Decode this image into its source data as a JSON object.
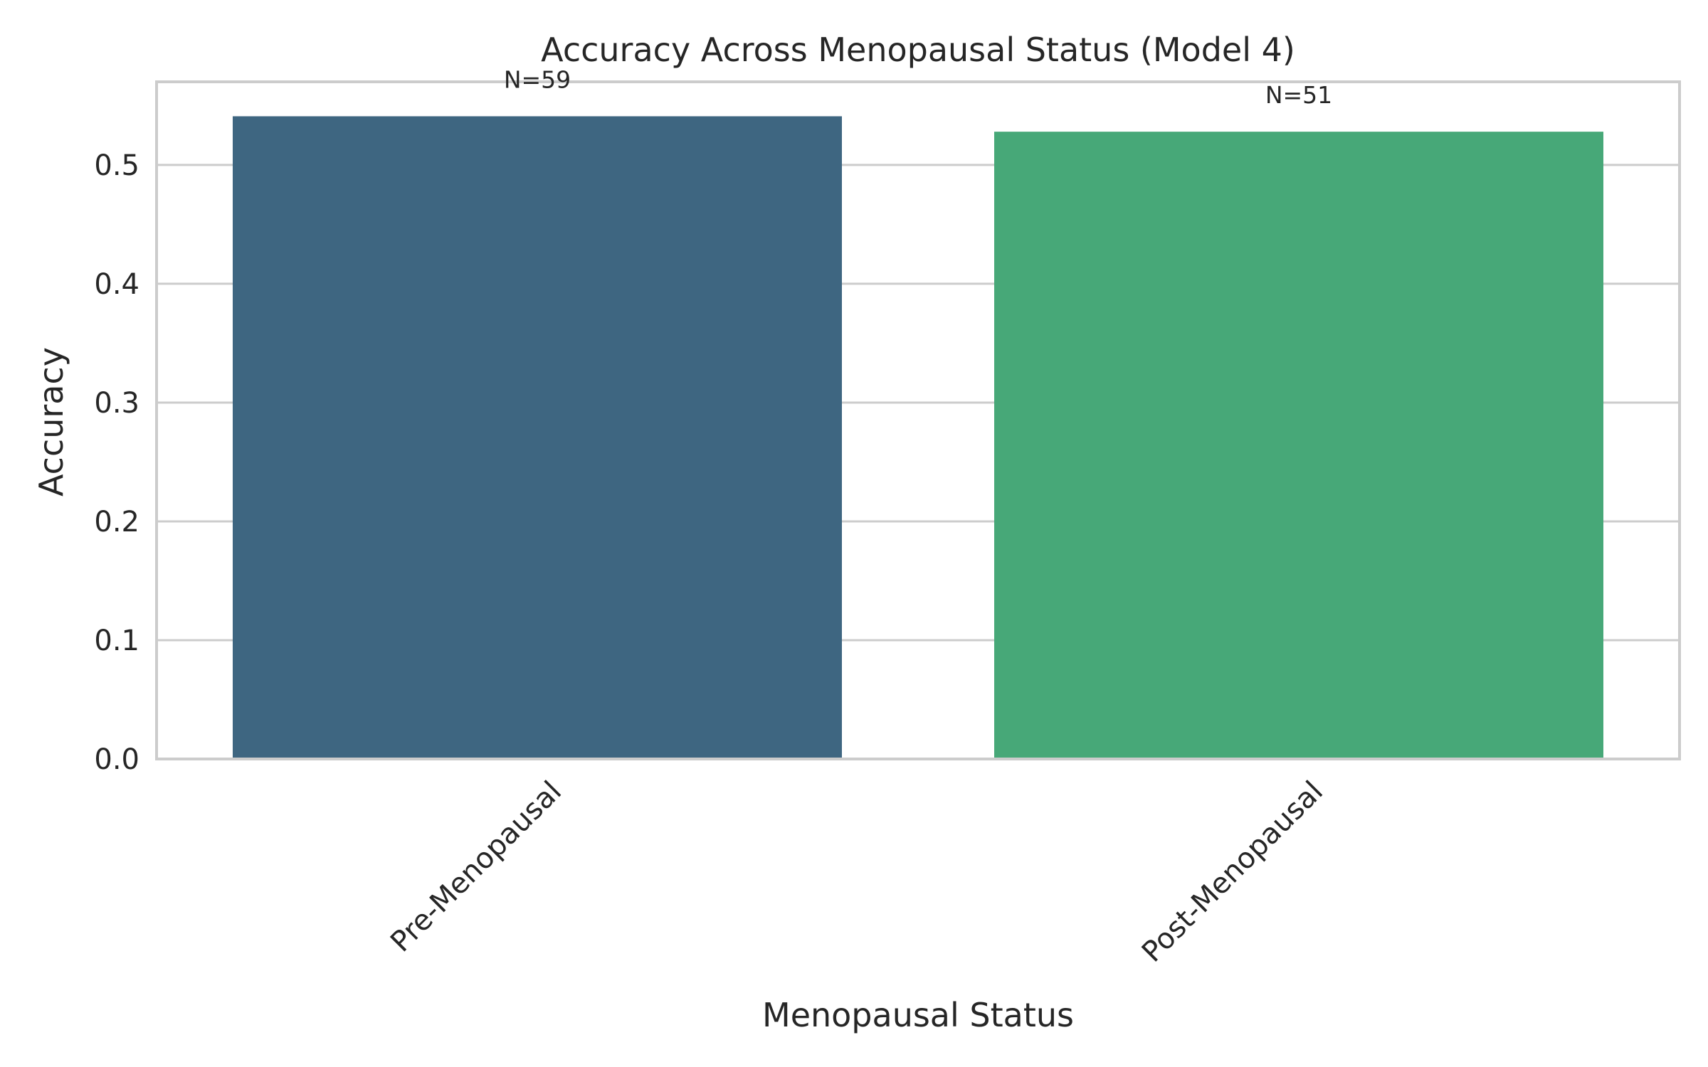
{
  "chart_data": {
    "type": "bar",
    "title": "Accuracy Across Menopausal Status (Model 4)",
    "xlabel": "Menopausal Status",
    "ylabel": "Accuracy",
    "categories": [
      "Pre-Menopausal",
      "Post-Menopausal"
    ],
    "values": [
      0.541,
      0.528
    ],
    "counts": [
      "N=59",
      "N=51"
    ],
    "colors": [
      "#3e6681",
      "#47a878"
    ],
    "ylim": [
      0,
      0.57
    ],
    "yticks": [
      0.0,
      0.1,
      0.2,
      0.3,
      0.4,
      0.5
    ],
    "ytick_labels": [
      "0.0",
      "0.1",
      "0.2",
      "0.3",
      "0.4",
      "0.5"
    ],
    "grid": true,
    "grid_axis": "y",
    "legend": "none",
    "style_colors": {
      "grid": "#cccccc",
      "frame": "#cccccc",
      "text": "#262626",
      "background": "#ffffff"
    }
  }
}
